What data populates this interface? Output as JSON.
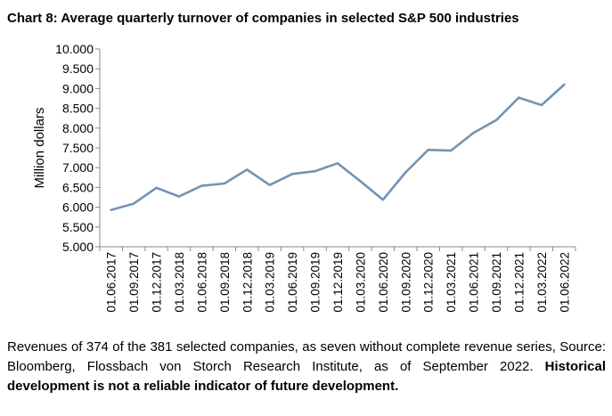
{
  "chart_data": {
    "type": "line",
    "title": "Chart 8: Average quarterly turnover of companies in selected S&P 500 industries",
    "ylabel": "Million dollars",
    "xlabel": "",
    "ylim": [
      5000,
      10000
    ],
    "yticks": [
      5000,
      5500,
      6000,
      6500,
      7000,
      7500,
      8000,
      8500,
      9000,
      9500,
      10000
    ],
    "ytick_labels": [
      "5.000",
      "5.500",
      "6.000",
      "6.500",
      "7.000",
      "7.500",
      "8.000",
      "8.500",
      "9.000",
      "9.500",
      "10.000"
    ],
    "categories": [
      "01.06.2017",
      "01.09.2017",
      "01.12.2017",
      "01.03.2018",
      "01.06.2018",
      "01.09.2018",
      "01.12.2018",
      "01.03.2019",
      "01.06.2019",
      "01.09.2019",
      "01.12.2019",
      "01.03.2020",
      "01.06.2020",
      "01.09.2020",
      "01.12.2020",
      "01.03.2021",
      "01.06.2021",
      "01.09.2021",
      "01.12.2021",
      "01.03.2022",
      "01.06.2022"
    ],
    "series": [
      {
        "name": "",
        "color": "#7393b3",
        "values": [
          5930,
          6090,
          6490,
          6270,
          6540,
          6600,
          6950,
          6560,
          6840,
          6910,
          7110,
          6660,
          6190,
          6880,
          7450,
          7430,
          7880,
          8200,
          8770,
          8580,
          9100
        ]
      }
    ],
    "grid": false,
    "legend": "none"
  },
  "footnote": {
    "text": "Revenues of 374 of the 381 selected companies, as seven without complete revenue series, Source: Bloomberg, Flossbach von Storch Research Institute, as of September 2022. ",
    "bold": "Historical development is not a reliable indicator of future development."
  }
}
